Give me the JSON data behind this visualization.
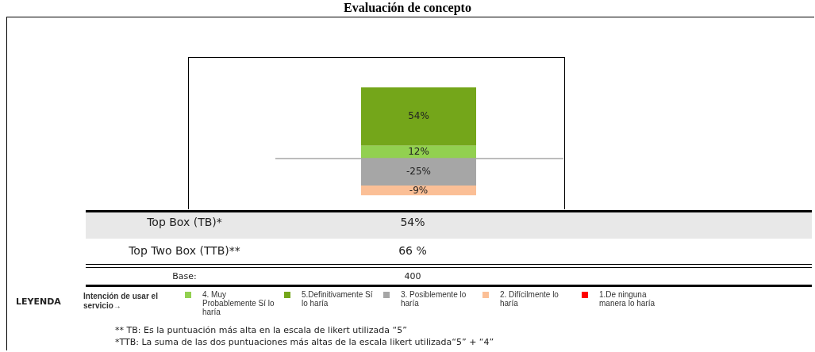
{
  "chart_data": {
    "type": "bar",
    "title": "Evaluación de concepto",
    "categories": [
      null
    ],
    "stacked": true,
    "series": [
      {
        "name": "4. Muy Probablemente Sí lo haría",
        "color": "#92d050",
        "values": [
          12
        ],
        "value_labels": [
          "12%"
        ]
      },
      {
        "name": "5.Definitivamente Sí lo haría",
        "color": "#74a61a",
        "values": [
          54
        ],
        "value_labels": [
          "54%"
        ]
      },
      {
        "name": "3. Posiblemente lo haría",
        "color": "#a6a6a6",
        "values": [
          -25
        ],
        "value_labels": [
          "-25%"
        ]
      },
      {
        "name": "2. Difícilmente lo haría",
        "color": "#fbbf96",
        "values": [
          -9
        ],
        "value_labels": [
          "-9%"
        ]
      },
      {
        "name": "1.De ninguna manera lo haría",
        "color": "#ff0000",
        "values": [
          0
        ],
        "value_labels": [
          null
        ]
      }
    ],
    "ref_lines": [
      {
        "axis": "y",
        "value": 0,
        "color": "#a6a6a6"
      }
    ],
    "legend": "bottom",
    "legend_title": "Intención de usar el servicio→",
    "annotations": [
      "Top Box (TB)*",
      "54%",
      "Top Two Box (TTB)**",
      "66 %",
      "Base:",
      "400",
      "LEYENDA",
      "** TB: Es la puntuación más alta  en la escala de likert utilizada “5”",
      "*TTB: La suma de las dos puntuaciones más altas de la escala likert  utilizada“5” + “4”"
    ]
  }
}
